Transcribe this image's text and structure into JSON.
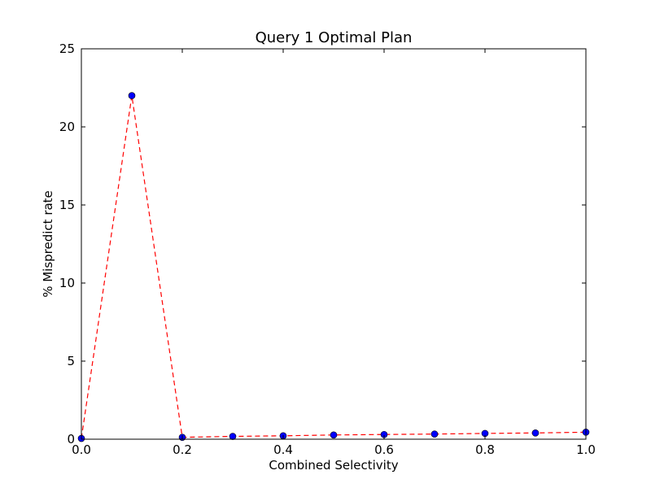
{
  "chart_data": {
    "type": "line",
    "title": "Query 1 Optimal Plan",
    "xlabel": "Combined Selectivity",
    "ylabel": "% Mispredict rate",
    "xlim": [
      0.0,
      1.0
    ],
    "ylim": [
      0,
      25
    ],
    "x_ticks": [
      "0.0",
      "0.2",
      "0.4",
      "0.6",
      "0.8",
      "1.0"
    ],
    "y_ticks": [
      "0",
      "5",
      "10",
      "15",
      "20",
      "25"
    ],
    "grid": false,
    "series": [
      {
        "x": [
          0.0,
          0.1,
          0.2,
          0.3,
          0.4,
          0.5,
          0.6,
          0.7,
          0.8,
          0.9,
          1.0
        ],
        "y": [
          0.05,
          22.0,
          0.12,
          0.18,
          0.22,
          0.27,
          0.3,
          0.33,
          0.37,
          0.4,
          0.45
        ],
        "line_color": "#ff0000",
        "line_style": "dashed",
        "marker_color": "#0000ff",
        "marker": "circle"
      }
    ]
  }
}
